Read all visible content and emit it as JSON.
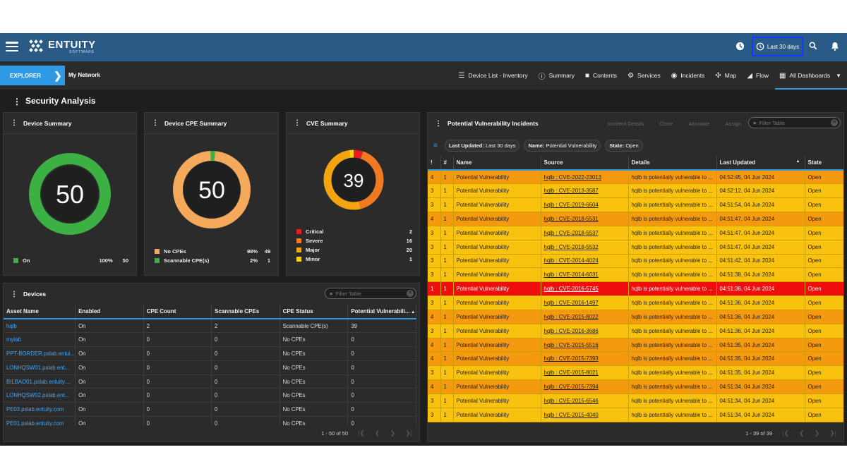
{
  "header": {
    "logo_name": "ENTUITY",
    "logo_sub": "SOFTWARE",
    "time_range": "Last 30 days"
  },
  "nav": {
    "explorer": "EXPLORER",
    "my_network": "My Network",
    "items": [
      {
        "label": "Device List - Inventory",
        "icon": "list-icon"
      },
      {
        "label": "Summary",
        "icon": "info-icon"
      },
      {
        "label": "Contents",
        "icon": "folder-icon"
      },
      {
        "label": "Services",
        "icon": "gear-icon"
      },
      {
        "label": "Incidents",
        "icon": "incident-icon"
      },
      {
        "label": "Map",
        "icon": "map-icon"
      },
      {
        "label": "Flow",
        "icon": "flow-icon"
      },
      {
        "label": "All Dashboards",
        "icon": "dashboard-icon"
      }
    ]
  },
  "page_title": "Security Analysis",
  "device_summary": {
    "title": "Device Summary",
    "center": "50",
    "legend": [
      {
        "label": "On",
        "pct": "100%",
        "count": "50",
        "color": "#3cb043"
      }
    ]
  },
  "cpe_summary": {
    "title": "Device CPE Summary",
    "center": "50",
    "legend": [
      {
        "label": "No CPEs",
        "pct": "98%",
        "count": "49",
        "color": "#f5a95a"
      },
      {
        "label": "Scannable CPE(s)",
        "pct": "2%",
        "count": "1",
        "color": "#3cb043"
      }
    ]
  },
  "cve_summary": {
    "title": "CVE Summary",
    "center": "39",
    "legend": [
      {
        "label": "Critical",
        "count": "2",
        "color": "#e81c1c"
      },
      {
        "label": "Severe",
        "count": "16",
        "color": "#f07a22"
      },
      {
        "label": "Major",
        "count": "20",
        "color": "#f5a40f"
      },
      {
        "label": "Minor",
        "count": "1",
        "color": "#f5d20f"
      }
    ]
  },
  "devices": {
    "title": "Devices",
    "filter_placeholder": "Filter Table",
    "columns": [
      "Asset Name",
      "Enabled",
      "CPE Count",
      "Scannable CPEs",
      "CPE Status",
      "Potential Vulnerabili..."
    ],
    "rows": [
      [
        "hqlb",
        "On",
        "2",
        "2",
        "Scannable CPE(s)",
        "39"
      ],
      [
        "mylab",
        "On",
        "0",
        "0",
        "No CPEs",
        "0"
      ],
      [
        "PPT-BORDER.pslab.entui...",
        "On",
        "0",
        "0",
        "No CPEs",
        "0"
      ],
      [
        "LONHQSW01.pslab.ent...",
        "On",
        "0",
        "0",
        "No CPEs",
        "0"
      ],
      [
        "BILBAO01.pslab.entuity....",
        "On",
        "0",
        "0",
        "No CPEs",
        "0"
      ],
      [
        "LONHQSW02.pslab.ent...",
        "On",
        "0",
        "0",
        "No CPEs",
        "0"
      ],
      [
        "PE03.pslab.entuity.com",
        "On",
        "0",
        "0",
        "No CPEs",
        "0"
      ],
      [
        "PE01.pslab.entuity.com",
        "On",
        "0",
        "0",
        "No CPEs",
        "0"
      ]
    ],
    "pager": "1 - 50 of 50"
  },
  "pvi": {
    "title": "Potential Vulnerability Incidents",
    "actions": [
      "Incident Details",
      "Close",
      "Annotate",
      "Assign"
    ],
    "filter_placeholder": "Filter Table",
    "chips": [
      {
        "key": "Last Updated:",
        "val": "Last 30 days"
      },
      {
        "key": "Name:",
        "val": "Potential Vulnerability"
      },
      {
        "key": "State:",
        "val": "Open"
      }
    ],
    "columns": [
      "!",
      "#",
      "Name",
      "Source",
      "Details",
      "Last Updated",
      "State"
    ],
    "rows": [
      {
        "sev": "4",
        "n": "1",
        "name": "Potential Vulnerability",
        "src": "hqlb : CVE-2022-23013",
        "det": "hqlb is potentially vulnerable to ...",
        "upd": "04:52:45, 04 Jun 2024",
        "state": "Open"
      },
      {
        "sev": "3",
        "n": "1",
        "name": "Potential Vulnerability",
        "src": "hqlb : CVE-2013-3587",
        "det": "hqlb is potentially vulnerable to ...",
        "upd": "04:52:12, 04 Jun 2024",
        "state": "Open"
      },
      {
        "sev": "3",
        "n": "1",
        "name": "Potential Vulnerability",
        "src": "hqlb : CVE-2019-6604",
        "det": "hqlb is potentially vulnerable to ...",
        "upd": "04:51:54, 04 Jun 2024",
        "state": "Open"
      },
      {
        "sev": "4",
        "n": "1",
        "name": "Potential Vulnerability",
        "src": "hqlb : CVE-2018-5531",
        "det": "hqlb is potentially vulnerable to ...",
        "upd": "04:51:47, 04 Jun 2024",
        "state": "Open"
      },
      {
        "sev": "3",
        "n": "1",
        "name": "Potential Vulnerability",
        "src": "hqlb : CVE-2018-5537",
        "det": "hqlb is potentially vulnerable to ...",
        "upd": "04:51:47, 04 Jun 2024",
        "state": "Open"
      },
      {
        "sev": "3",
        "n": "1",
        "name": "Potential Vulnerability",
        "src": "hqlb : CVE-2018-5532",
        "det": "hqlb is potentially vulnerable to ...",
        "upd": "04:51:47, 04 Jun 2024",
        "state": "Open"
      },
      {
        "sev": "3",
        "n": "1",
        "name": "Potential Vulnerability",
        "src": "hqlb : CVE-2014-4024",
        "det": "hqlb is potentially vulnerable to ...",
        "upd": "04:51:42, 04 Jun 2024",
        "state": "Open"
      },
      {
        "sev": "3",
        "n": "1",
        "name": "Potential Vulnerability",
        "src": "hqlb : CVE-2014-6031",
        "det": "hqlb is potentially vulnerable to ...",
        "upd": "04:51:38, 04 Jun 2024",
        "state": "Open"
      },
      {
        "sev": "1",
        "n": "1",
        "name": "Potential Vulnerability",
        "src": "hqlb : CVE-2016-5745",
        "det": "hqlb is potentially vulnerable to ...",
        "upd": "04:51:36, 04 Jun 2024",
        "state": "Open"
      },
      {
        "sev": "3",
        "n": "1",
        "name": "Potential Vulnerability",
        "src": "hqlb : CVE-2016-1497",
        "det": "hqlb is potentially vulnerable to ...",
        "upd": "04:51:36, 04 Jun 2024",
        "state": "Open"
      },
      {
        "sev": "4",
        "n": "1",
        "name": "Potential Vulnerability",
        "src": "hqlb : CVE-2015-8022",
        "det": "hqlb is potentially vulnerable to ...",
        "upd": "04:51:36, 04 Jun 2024",
        "state": "Open"
      },
      {
        "sev": "3",
        "n": "1",
        "name": "Potential Vulnerability",
        "src": "hqlb : CVE-2016-3686",
        "det": "hqlb is potentially vulnerable to ...",
        "upd": "04:51:36, 04 Jun 2024",
        "state": "Open"
      },
      {
        "sev": "4",
        "n": "1",
        "name": "Potential Vulnerability",
        "src": "hqlb : CVE-2015-5516",
        "det": "hqlb is potentially vulnerable to ...",
        "upd": "04:51:35, 04 Jun 2024",
        "state": "Open"
      },
      {
        "sev": "4",
        "n": "1",
        "name": "Potential Vulnerability",
        "src": "hqlb : CVE-2015-7393",
        "det": "hqlb is potentially vulnerable to ...",
        "upd": "04:51:35, 04 Jun 2024",
        "state": "Open"
      },
      {
        "sev": "3",
        "n": "1",
        "name": "Potential Vulnerability",
        "src": "hqlb : CVE-2015-8021",
        "det": "hqlb is potentially vulnerable to ...",
        "upd": "04:51:35, 04 Jun 2024",
        "state": "Open"
      },
      {
        "sev": "4",
        "n": "1",
        "name": "Potential Vulnerability",
        "src": "hqlb : CVE-2015-7394",
        "det": "hqlb is potentially vulnerable to ...",
        "upd": "04:51:34, 04 Jun 2024",
        "state": "Open"
      },
      {
        "sev": "3",
        "n": "1",
        "name": "Potential Vulnerability",
        "src": "hqlb : CVE-2015-6546",
        "det": "hqlb is potentially vulnerable to ...",
        "upd": "04:51:34, 04 Jun 2024",
        "state": "Open"
      },
      {
        "sev": "3",
        "n": "1",
        "name": "Potential Vulnerability",
        "src": "hqlb : CVE-2015-4040",
        "det": "hqlb is potentially vulnerable to ...",
        "upd": "04:51:34, 04 Jun 2024",
        "state": "Open"
      }
    ],
    "pager": "1 - 39 of 39"
  }
}
